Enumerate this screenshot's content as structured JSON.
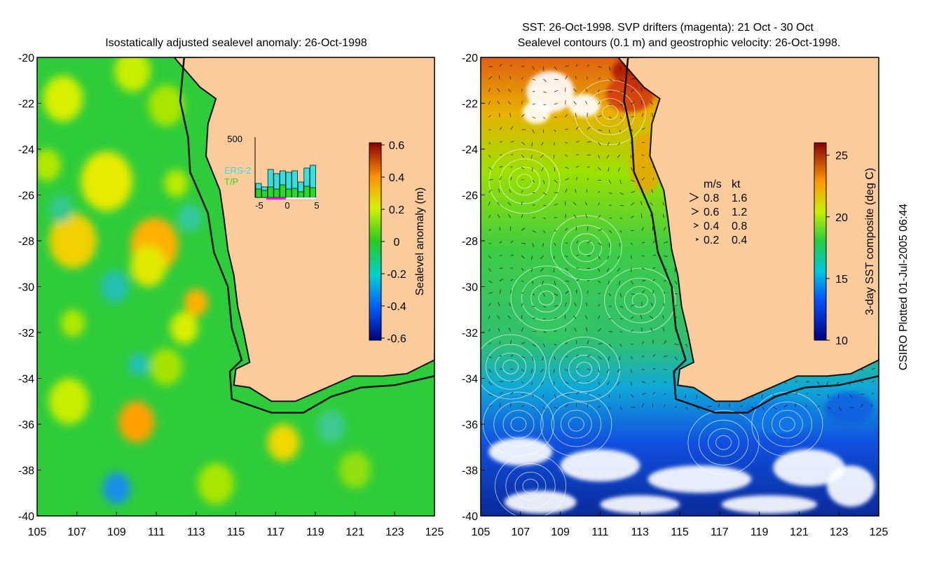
{
  "left_panel": {
    "title": "Isostatically adjusted sealevel anomaly: 26-Oct-1998",
    "colorbar": {
      "label": "Sealevel anomaly (m)",
      "ticks": [
        "0.6",
        "0.4",
        "0.2",
        "0",
        "-0.2",
        "-0.4",
        "-0.6"
      ]
    },
    "inset": {
      "ymax_label": "500",
      "legend_ers": "ERS-2",
      "legend_tp": "T/P",
      "x_ticks": [
        "-5",
        "0",
        "5"
      ],
      "colors": {
        "ers": "#33e0e0",
        "tp": "#22dd22"
      }
    }
  },
  "right_panel": {
    "title_line1": "SST: 26-Oct-1998. SVP drifters (magenta): 21 Oct - 30 Oct",
    "title_line2": "Sealevel contours (0.1 m) and geostrophic velocity: 26-Oct-1998.",
    "colorbar": {
      "label": "3-day SST composite (deg C)",
      "ticks": [
        "25",
        "20",
        "15",
        "10"
      ]
    },
    "velocity_key": {
      "header_ms": "m/s",
      "header_kt": "kt",
      "rows": [
        {
          "ms": "0.8",
          "kt": "1.6"
        },
        {
          "ms": "0.6",
          "kt": "1.2"
        },
        {
          "ms": "0.4",
          "kt": "0.8"
        },
        {
          "ms": "0.2",
          "kt": "0.4"
        }
      ]
    }
  },
  "axes": {
    "y_ticks": [
      "-20",
      "-22",
      "-24",
      "-26",
      "-28",
      "-30",
      "-32",
      "-34",
      "-36",
      "-38",
      "-40"
    ],
    "x_ticks": [
      "105",
      "107",
      "109",
      "111",
      "113",
      "115",
      "117",
      "119",
      "121",
      "123",
      "125"
    ]
  },
  "footer": "CSIRO Plotted 01-Jul-2005 06:44",
  "colors": {
    "land": "#fccb9c",
    "ocean_green": "#2ecc3a",
    "coast": "#111111"
  }
}
